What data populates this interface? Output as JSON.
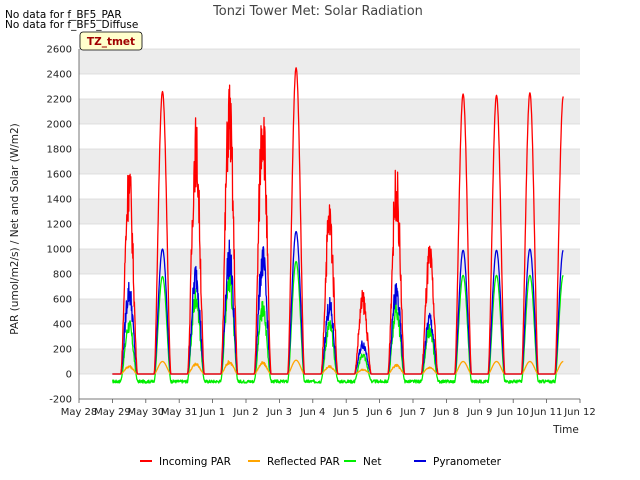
{
  "notes": [
    "No data for f_BF5_PAR",
    "No data for f_BF5_Diffuse"
  ],
  "tag": "TZ_tmet",
  "chart_data": {
    "type": "line",
    "title": "Tonzi Tower Met: Solar Radiation",
    "xlabel": "Time",
    "ylabel": "PAR (umol/m2/s) / Net and Solar (W/m2)",
    "xlim": [
      0,
      15
    ],
    "ylim": [
      -200,
      2600
    ],
    "yticks": [
      -200,
      0,
      200,
      400,
      600,
      800,
      1000,
      1200,
      1400,
      1600,
      1800,
      2000,
      2200,
      2400,
      2600
    ],
    "xticks": [
      "May 28",
      "May 29",
      "May 30",
      "May 31",
      "Jun 1",
      "Jun 2",
      "Jun 3",
      "Jun 4",
      "Jun 5",
      "Jun 6",
      "Jun 7",
      "Jun 8",
      "Jun 9",
      "Jun 10",
      "Jun 11",
      "Jun 12"
    ],
    "grid": true,
    "legend_position": "bottom",
    "daily_peaks": {
      "days": [
        "May 29",
        "May 30",
        "May 31",
        "Jun 1",
        "Jun 2",
        "Jun 3",
        "Jun 4",
        "Jun 5",
        "Jun 6",
        "Jun 7",
        "Jun 8",
        "Jun 9",
        "Jun 10",
        "Jun 11"
      ],
      "series": [
        {
          "name": "Incoming PAR",
          "color": "#ff0000",
          "values": [
            1740,
            2260,
            2080,
            2400,
            2330,
            2450,
            1420,
            680,
            1700,
            1060,
            2240,
            2230,
            2250,
            2220
          ]
        },
        {
          "name": "Reflected PAR",
          "color": "#ffa500",
          "values": [
            70,
            100,
            90,
            110,
            100,
            110,
            70,
            40,
            80,
            60,
            100,
            100,
            100,
            100
          ]
        },
        {
          "name": "Net",
          "color": "#00ee00",
          "values": [
            450,
            780,
            720,
            900,
            600,
            900,
            450,
            180,
            600,
            400,
            790,
            790,
            790,
            790
          ]
        },
        {
          "name": "Pyranometer",
          "color": "#0000dd",
          "values": [
            760,
            1000,
            910,
            1080,
            1050,
            1140,
            620,
            280,
            750,
            510,
            990,
            990,
            1000,
            990
          ]
        }
      ],
      "night": {
        "Incoming PAR": 0,
        "Reflected PAR": 0,
        "Net": -60,
        "Pyranometer": 0
      }
    }
  }
}
